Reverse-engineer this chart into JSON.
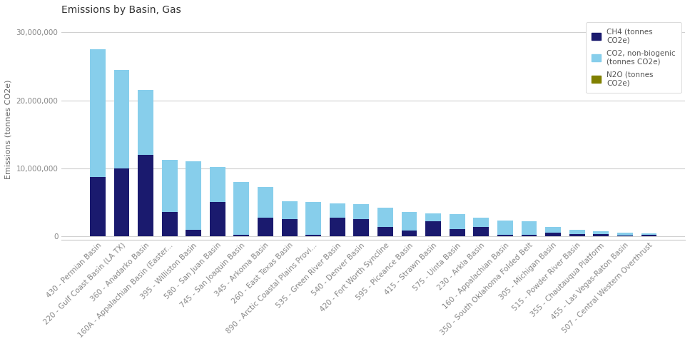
{
  "title": "Emissions by Basin, Gas",
  "ylabel": "Emissions (tonnes CO2e)",
  "categories": [
    "430 - Permian Basin",
    "220 - Gulf Coast Basin (LA TX)",
    "360 - Anadarko Basin",
    "160A - Appalachian Basin (Easter...",
    "395 - Williston Basin",
    "580 - San Juan Basin",
    "745 - San Joaquin Basin",
    "345 - Arkoma Basin",
    "260 - East Texas Basin",
    "890 - Arctic Coastal Plains Provi...",
    "535 - Green River Basin",
    "540 - Denver Basin",
    "420 - Fort Worth Syncline",
    "595 - Piceance Basin",
    "415 - Strawn Basin",
    "575 - Uinta Basin",
    "230 - Arkla Basin",
    "160 - Appalachian Basin",
    "350 - South Oklahoma Folded Belt",
    "305 - Michigan Basin",
    "515 - Powder River Basin",
    "355 - Chautauqua Platform",
    "455 - Las Vegas-Raton Basin",
    "507 - Central Western Overthrust"
  ],
  "CH4": [
    8700000,
    10000000,
    12000000,
    3600000,
    900000,
    5000000,
    200000,
    2700000,
    2500000,
    200000,
    2700000,
    2500000,
    1400000,
    800000,
    2200000,
    1000000,
    1400000,
    200000,
    200000,
    500000,
    300000,
    300000,
    150000,
    200000
  ],
  "CO2": [
    18800000,
    14500000,
    9500000,
    7600000,
    10100000,
    5200000,
    7800000,
    4500000,
    2600000,
    4800000,
    2100000,
    2200000,
    2800000,
    2800000,
    1200000,
    2300000,
    1300000,
    2100000,
    2000000,
    900000,
    600000,
    400000,
    350000,
    200000
  ],
  "N2O": [
    0,
    0,
    0,
    0,
    0,
    0,
    0,
    0,
    0,
    0,
    0,
    0,
    0,
    0,
    0,
    0,
    0,
    0,
    0,
    0,
    0,
    0,
    0,
    0
  ],
  "color_CH4": "#1a1a6e",
  "color_CO2": "#87ceeb",
  "color_N2O": "#808000",
  "ylim": [
    -500000,
    32000000
  ],
  "yticks": [
    0,
    10000000,
    20000000,
    30000000
  ],
  "ytick_labels": [
    "0",
    "10,000,000",
    "20,000,000",
    "30,000,000"
  ],
  "background_color": "#ffffff",
  "grid_color": "#d0d0d0",
  "title_fontsize": 10,
  "axis_fontsize": 8,
  "tick_fontsize": 7.5
}
